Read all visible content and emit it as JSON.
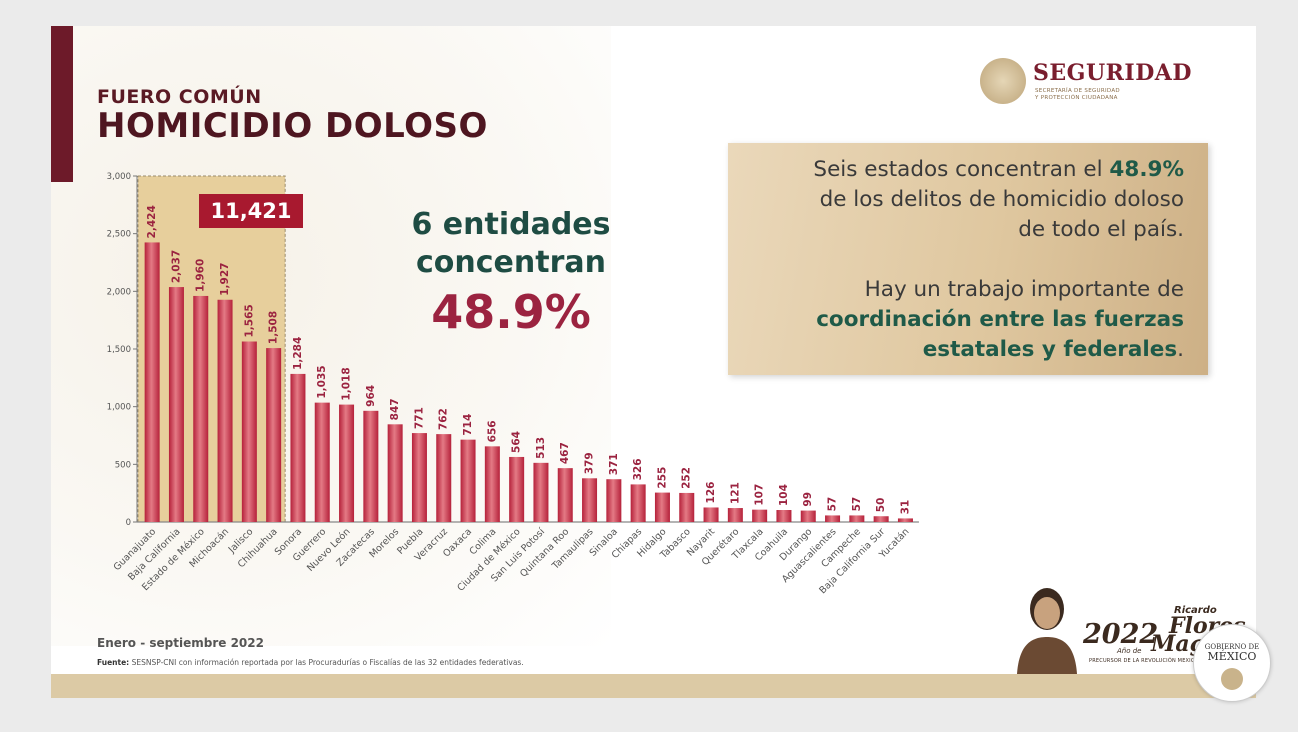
{
  "header": {
    "subtitle": "FUERO COMÚN",
    "title": "HOMICIDIO DOLOSO"
  },
  "logo": {
    "name": "SEGURIDAD",
    "line1": "SECRETARÍA DE SEGURIDAD",
    "line2": "Y PROTECCIÓN CIUDADANA",
    "icon": "eagle-seal-icon"
  },
  "highlight": {
    "line1": "6 entidades",
    "line2": "concentran",
    "percent": "48.9%"
  },
  "info_box": {
    "p1_a": "Seis estados concentran el ",
    "p1_b": "48.9%",
    "p1_c": "de los delitos de homicidio doloso",
    "p1_d": "de todo el país.",
    "p2_a": "Hay un trabajo importante de",
    "p2_b": "coordinación entre las fuerzas",
    "p2_c": "estatales y federales",
    "p2_d": "."
  },
  "footer": {
    "period": "Enero - septiembre 2022",
    "source_label": "Fuente:",
    "source_text": "SESNSP-CNI con información reportada por las Procuradurías o Fiscalías de las 32 entidades federativas."
  },
  "commemorative": {
    "year": "2022",
    "anio": "Año de",
    "first": "Ricardo",
    "flores": "Flores",
    "magon": "Magón",
    "tagline": "PRECURSOR DE LA REVOLUCIÓN MEXICANA"
  },
  "gob_badge": {
    "top": "GOBIERNO DE",
    "bottom": "MÉXICO"
  },
  "colors": {
    "bar": "#b5213a",
    "bar_light": "#e47a85",
    "label": "#9b2340",
    "highlight_fill": "#e7cf9c",
    "total_box": "#a8192f"
  },
  "chart_data": {
    "type": "bar",
    "title": "HOMICIDIO DOLOSO",
    "categories": [
      "Guanajuato",
      "Baja California",
      "Estado de México",
      "Michoacán",
      "Jalisco",
      "Chihuahua",
      "Sonora",
      "Guerrero",
      "Nuevo León",
      "Zacatecas",
      "Morelos",
      "Puebla",
      "Veracruz",
      "Oaxaca",
      "Colima",
      "Ciudad de México",
      "San Luis Potosí",
      "Quintana Roo",
      "Tamaulipas",
      "Sinaloa",
      "Chiapas",
      "Hidalgo",
      "Tabasco",
      "Nayarit",
      "Querétaro",
      "Tlaxcala",
      "Coahuila",
      "Durango",
      "Aguascalientes",
      "Campeche",
      "Baja California Sur",
      "Yucatán"
    ],
    "values": [
      2424,
      2037,
      1960,
      1927,
      1565,
      1508,
      1284,
      1035,
      1018,
      964,
      847,
      771,
      762,
      714,
      656,
      564,
      513,
      467,
      379,
      371,
      326,
      255,
      252,
      126,
      121,
      107,
      104,
      99,
      57,
      57,
      50,
      31
    ],
    "value_labels": [
      "2,424",
      "2,037",
      "1,960",
      "1,927",
      "1,565",
      "1,508",
      "1,284",
      "1,035",
      "1,018",
      "964",
      "847",
      "771",
      "762",
      "714",
      "656",
      "564",
      "513",
      "467",
      "379",
      "371",
      "326",
      "255",
      "252",
      "126",
      "121",
      "107",
      "104",
      "99",
      "57",
      "57",
      "50",
      "31"
    ],
    "ylim": [
      0,
      3000
    ],
    "yticks": [
      0,
      500,
      1000,
      1500,
      2000,
      2500,
      3000
    ],
    "ytick_labels": [
      "0",
      "500",
      "1,000",
      "1,500",
      "2,000",
      "2,500",
      "3,000"
    ],
    "highlight_count": 6,
    "highlight_total": "11,421",
    "xlabel": "",
    "ylabel": "",
    "grid": false,
    "legend": "none"
  }
}
